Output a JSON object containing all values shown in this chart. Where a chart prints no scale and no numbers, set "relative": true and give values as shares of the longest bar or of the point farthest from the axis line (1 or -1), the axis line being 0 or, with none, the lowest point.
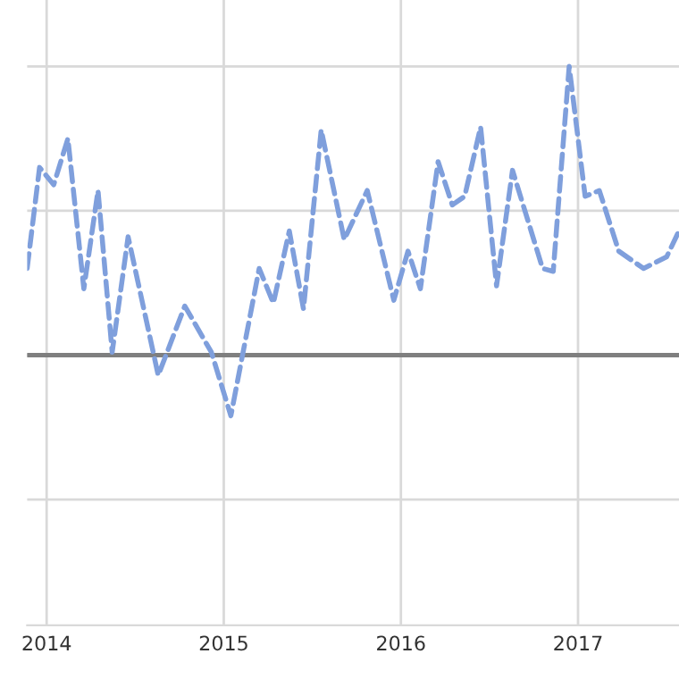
{
  "chart_data": {
    "type": "line",
    "relative": true,
    "x": [
      2013.89,
      2013.96,
      2014.04,
      2014.12,
      2014.21,
      2014.29,
      2014.37,
      2014.46,
      2014.63,
      2014.78,
      2014.93,
      2015.04,
      2015.2,
      2015.28,
      2015.37,
      2015.45,
      2015.55,
      2015.68,
      2015.81,
      2015.96,
      2016.04,
      2016.11,
      2016.21,
      2016.29,
      2016.36,
      2016.45,
      2016.54,
      2016.63,
      2016.8,
      2016.86,
      2016.95,
      2017.04,
      2017.12,
      2017.23,
      2017.37,
      2017.5,
      2017.57
    ],
    "xlim": [
      2013.89,
      2017.57
    ],
    "xticks": [
      2014,
      2015,
      2016,
      2017
    ],
    "series": [
      {
        "color": "#7f9fdc",
        "values": [
          0.3,
          0.65,
          0.59,
          0.75,
          0.23,
          0.57,
          0.01,
          0.41,
          -0.07,
          0.17,
          0.01,
          -0.21,
          0.3,
          0.18,
          0.43,
          0.16,
          0.78,
          0.4,
          0.57,
          0.19,
          0.36,
          0.23,
          0.67,
          0.52,
          0.55,
          0.79,
          0.24,
          0.64,
          0.3,
          0.29,
          1.0,
          0.55,
          0.57,
          0.36,
          0.3,
          0.34,
          0.43
        ]
      }
    ],
    "grid": true,
    "line_style": "dashed",
    "marker": "none",
    "legend": false
  }
}
